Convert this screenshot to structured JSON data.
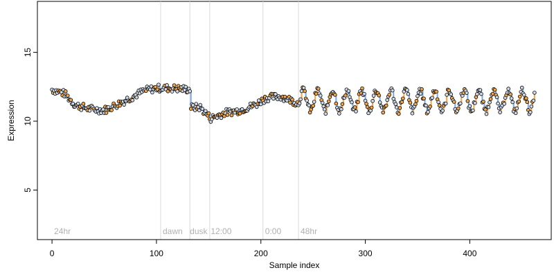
{
  "chart_data": {
    "type": "scatter",
    "xlabel": "Sample index",
    "ylabel": "Expression",
    "xlim": [
      -14,
      478
    ],
    "ylim": [
      1.4,
      18.7
    ],
    "x_ticks": [
      0,
      100,
      200,
      300,
      400
    ],
    "y_ticks": [
      5,
      10,
      15
    ],
    "grid": false,
    "legend": "none",
    "colors": {
      "gain": "#f0a54a",
      "loss": "#7aa8e0",
      "point_fill": "#cfd8e6",
      "point_fill_alt": "#f0a54a",
      "point_stroke": "#000000",
      "phase_line": "#d9d9d9",
      "phase_text": "#b0b0b0"
    },
    "phase_markers": [
      {
        "x": 2,
        "line_x": null,
        "label": "24hr"
      },
      {
        "x": 106,
        "line_x": 104,
        "label": "dawn"
      },
      {
        "x": 132,
        "line_x": 132,
        "label": "dusk"
      },
      {
        "x": 152,
        "line_x": 151,
        "label": "12:00"
      },
      {
        "x": 204,
        "line_x": 202,
        "label": "0:00"
      },
      {
        "x": 238,
        "line_x": 236,
        "label": "48hr"
      }
    ],
    "segment_anchors": [
      [
        0,
        12.3
      ],
      [
        12,
        12.0
      ],
      [
        22,
        11.2
      ],
      [
        35,
        10.9
      ],
      [
        50,
        10.8
      ],
      [
        62,
        11.2
      ],
      [
        75,
        11.7
      ],
      [
        88,
        12.2
      ],
      [
        100,
        12.4
      ],
      [
        115,
        12.4
      ],
      [
        132,
        12.3
      ],
      [
        133,
        11.0
      ],
      [
        142,
        11.0
      ],
      [
        152,
        10.2
      ],
      [
        165,
        10.6
      ],
      [
        180,
        10.8
      ],
      [
        195,
        11.2
      ],
      [
        205,
        11.7
      ],
      [
        220,
        11.8
      ],
      [
        236,
        11.3
      ]
    ],
    "oscillation": {
      "x_start": 237,
      "x_end": 462,
      "period": 14,
      "center": 11.5,
      "amplitude": 0.75
    }
  }
}
